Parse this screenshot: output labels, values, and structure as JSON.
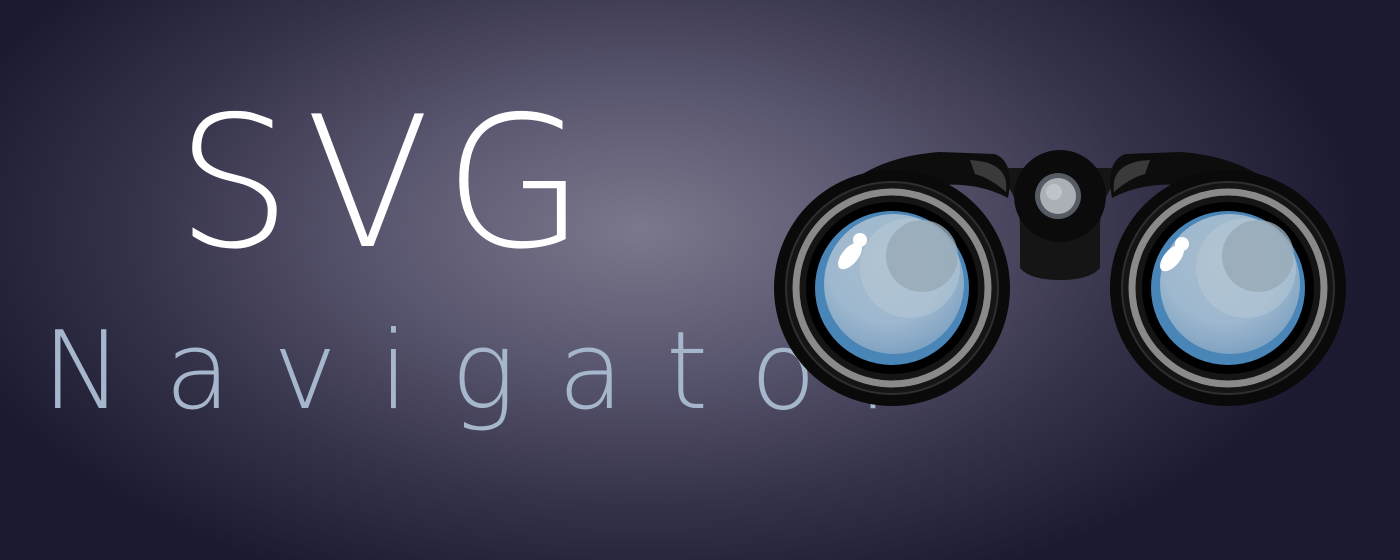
{
  "title": "SVG",
  "subtitle": "Navigator",
  "logo": {
    "icon": "binoculars-icon"
  },
  "colors": {
    "title": "#ffffff",
    "subtitle": "#a6b6cc",
    "background_center": "#7b788c",
    "background_edge": "#1b1a30",
    "lens": "#9fb6cc",
    "lens_rim": "#4a85b8",
    "body": "#0c0c0c"
  }
}
